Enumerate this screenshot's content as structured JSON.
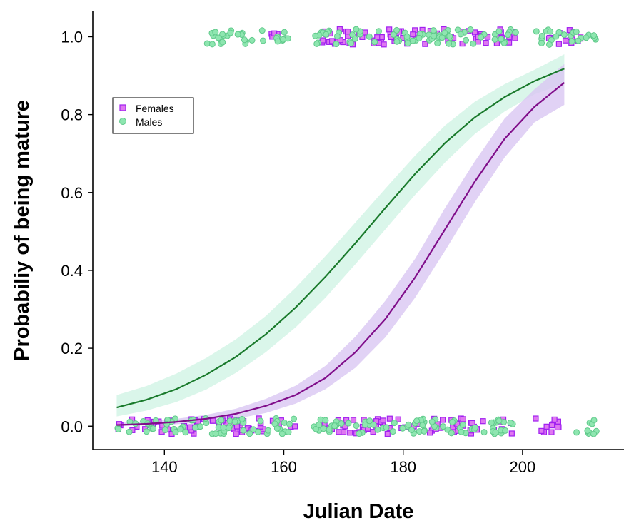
{
  "colors": {
    "females_line": "#800e8a",
    "females_band": "#d9c7f2",
    "females_marker_fill": "#df78f0",
    "females_marker_edge": "#a020f0",
    "males_line": "#1a7a2c",
    "males_band": "#d4f5e6",
    "males_marker_fill": "#8ee6b0",
    "males_marker_edge": "#5fc98a"
  },
  "chart_data": {
    "type": "line",
    "title": "",
    "xlabel": "Julian Date",
    "ylabel": "Probabiliy of being mature",
    "xlim": [
      128,
      217
    ],
    "ylim": [
      -0.06,
      1.065
    ],
    "xticks": [
      140,
      160,
      180,
      200
    ],
    "xtick_labels": [
      "140",
      "160",
      "180",
      "200"
    ],
    "yticks": [
      0.0,
      0.2,
      0.4,
      0.6,
      0.8,
      1.0
    ],
    "ytick_labels": [
      "0.0",
      "0.2",
      "0.4",
      "0.6",
      "0.8",
      "1.0"
    ],
    "grid": false,
    "legend": {
      "position": "top-left",
      "entries": [
        "Females",
        "Males"
      ]
    },
    "series": [
      {
        "name": "Females",
        "marker": "square",
        "x": [
          132,
          137,
          142,
          147,
          152,
          157,
          162,
          167,
          172,
          177,
          182,
          187,
          192,
          197,
          202,
          207
        ],
        "y": [
          0.003,
          0.006,
          0.011,
          0.019,
          0.032,
          0.052,
          0.08,
          0.124,
          0.19,
          0.275,
          0.382,
          0.505,
          0.628,
          0.738,
          0.82,
          0.882
        ],
        "lower": [
          0.0,
          0.002,
          0.005,
          0.01,
          0.019,
          0.034,
          0.058,
          0.095,
          0.15,
          0.228,
          0.33,
          0.45,
          0.575,
          0.69,
          0.78,
          0.825
        ],
        "upper": [
          0.008,
          0.012,
          0.019,
          0.029,
          0.045,
          0.07,
          0.104,
          0.155,
          0.23,
          0.322,
          0.43,
          0.56,
          0.68,
          0.79,
          0.865,
          0.93
        ]
      },
      {
        "name": "Males",
        "marker": "circle",
        "x": [
          132,
          137,
          142,
          147,
          152,
          157,
          162,
          167,
          172,
          177,
          182,
          187,
          192,
          197,
          202,
          207
        ],
        "y": [
          0.048,
          0.068,
          0.095,
          0.132,
          0.178,
          0.236,
          0.305,
          0.384,
          0.47,
          0.56,
          0.648,
          0.727,
          0.793,
          0.845,
          0.886,
          0.918
        ],
        "lower": [
          0.025,
          0.04,
          0.062,
          0.094,
          0.137,
          0.19,
          0.254,
          0.33,
          0.416,
          0.505,
          0.594,
          0.677,
          0.75,
          0.808,
          0.852,
          0.88
        ],
        "upper": [
          0.08,
          0.103,
          0.135,
          0.175,
          0.223,
          0.283,
          0.356,
          0.437,
          0.523,
          0.61,
          0.695,
          0.772,
          0.833,
          0.878,
          0.915,
          0.955
        ]
      }
    ],
    "observations": [
      {
        "name": "Females",
        "y": 0,
        "x_ranges": [
          [
            132,
            162
          ],
          [
            166,
            199
          ],
          [
            202,
            207
          ]
        ]
      },
      {
        "name": "Females",
        "y": 1,
        "x_ranges": [
          [
            157,
            159
          ],
          [
            166,
            199
          ],
          [
            203,
            210
          ]
        ]
      },
      {
        "name": "Males",
        "y": 0,
        "x_ranges": [
          [
            132,
            162
          ],
          [
            165,
            199
          ],
          [
            209,
            213
          ]
        ]
      },
      {
        "name": "Males",
        "y": 1,
        "x_ranges": [
          [
            147,
            161
          ],
          [
            165,
            199
          ],
          [
            202,
            213
          ]
        ]
      }
    ]
  }
}
